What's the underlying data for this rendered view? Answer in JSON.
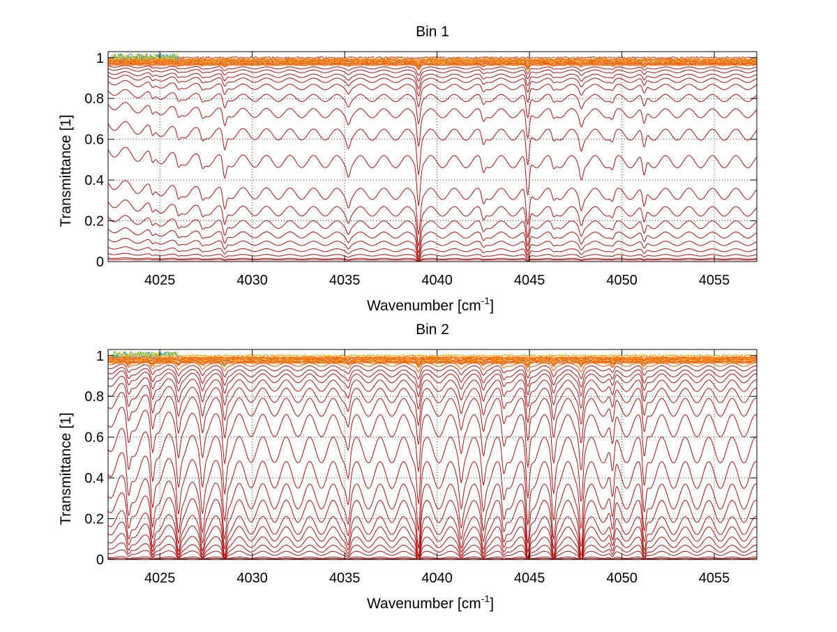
{
  "chart_data": [
    {
      "type": "line",
      "title": "Bin 1",
      "xlabel": "Wavenumber [cm",
      "xlabel_sup": "-1",
      "xlabel_end": "]",
      "ylabel": "Transmittance [1]",
      "xlim": [
        4022.2,
        4057.3
      ],
      "ylim": [
        0,
        1.03
      ],
      "xticks": [
        4025,
        4030,
        4035,
        4040,
        4045,
        4050,
        4055
      ],
      "yticks": [
        0,
        0.2,
        0.4,
        0.6,
        0.8,
        1
      ],
      "ytick_labels": [
        "0",
        "0.2",
        "0.4",
        "0.6",
        "0.8",
        "1"
      ],
      "grid": true,
      "line_color": "#b01010",
      "top_colors": [
        "#ff7700",
        "#ff5500",
        "#ff9a00",
        "#f04000",
        "#ffb000",
        "#e83000"
      ],
      "noise_colors": [
        "#30a0c0",
        "#40b070",
        "#e0c020"
      ],
      "baselines": [
        0.01,
        0.016,
        0.035,
        0.063,
        0.1,
        0.145,
        0.2,
        0.27,
        0.36,
        0.52,
        0.65,
        0.75,
        0.82,
        0.87,
        0.9,
        0.92,
        0.94,
        0.955,
        0.97,
        0.98,
        0.99,
        1.0
      ],
      "lines": [
        {
          "x": 4039.0,
          "strength": 1.0
        },
        {
          "x": 4044.9,
          "strength": 1.0
        },
        {
          "x": 4028.5,
          "strength": 0.5
        },
        {
          "x": 4051.2,
          "strength": 0.5
        },
        {
          "x": 4047.8,
          "strength": 0.35
        },
        {
          "x": 4042.5,
          "strength": 0.3
        },
        {
          "x": 4035.2,
          "strength": 0.25
        },
        {
          "x": 4024.6,
          "strength": 0.25
        },
        {
          "x": 4026.0,
          "strength": 0.22
        },
        {
          "x": 4027.3,
          "strength": 0.2
        },
        {
          "x": 4049.5,
          "strength": 0.2
        },
        {
          "x": 4046.3,
          "strength": 0.2
        }
      ]
    },
    {
      "type": "line",
      "title": "Bin 2",
      "xlabel": "Wavenumber [cm",
      "xlabel_sup": "-1",
      "xlabel_end": "]",
      "ylabel": "Transmittance [1]",
      "xlim": [
        4022.2,
        4057.3
      ],
      "ylim": [
        0,
        1.03
      ],
      "xticks": [
        4025,
        4030,
        4035,
        4040,
        4045,
        4050,
        4055
      ],
      "yticks": [
        0,
        0.2,
        0.4,
        0.6,
        0.8,
        1
      ],
      "ytick_labels": [
        "0",
        "0.2",
        "0.4",
        "0.6",
        "0.8",
        "1"
      ],
      "grid": true,
      "line_color": "#b01010",
      "top_colors": [
        "#ff7700",
        "#ff5500",
        "#ff9a00",
        "#f04000",
        "#ffb000",
        "#e83000"
      ],
      "noise_colors": [
        "#30a0c0",
        "#40b070",
        "#e0c020"
      ],
      "baselines": [
        0.005,
        0.012,
        0.04,
        0.07,
        0.11,
        0.16,
        0.21,
        0.29,
        0.37,
        0.48,
        0.6,
        0.71,
        0.79,
        0.84,
        0.88,
        0.91,
        0.93,
        0.95,
        0.965,
        0.978,
        0.99,
        1.0
      ],
      "lines": [
        {
          "x": 4039.0,
          "strength": 1.0
        },
        {
          "x": 4044.9,
          "strength": 1.0
        },
        {
          "x": 4028.5,
          "strength": 0.8
        },
        {
          "x": 4051.2,
          "strength": 0.8
        },
        {
          "x": 4047.8,
          "strength": 0.9
        },
        {
          "x": 4046.3,
          "strength": 0.75
        },
        {
          "x": 4049.5,
          "strength": 0.7
        },
        {
          "x": 4042.5,
          "strength": 0.55
        },
        {
          "x": 4041.3,
          "strength": 0.45
        },
        {
          "x": 4043.6,
          "strength": 0.5
        },
        {
          "x": 4035.2,
          "strength": 0.45
        },
        {
          "x": 4024.6,
          "strength": 0.7
        },
        {
          "x": 4026.0,
          "strength": 0.65
        },
        {
          "x": 4027.3,
          "strength": 0.6
        },
        {
          "x": 4023.3,
          "strength": 0.55
        }
      ]
    }
  ]
}
